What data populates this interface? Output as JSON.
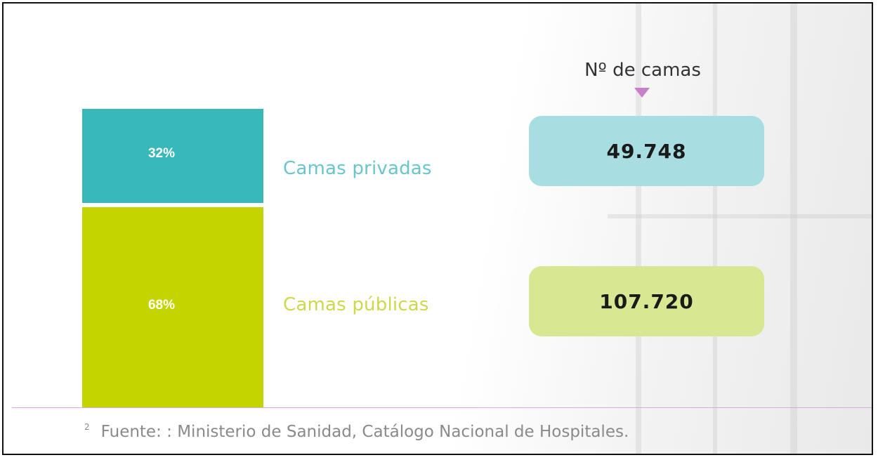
{
  "chart_data": {
    "type": "bar",
    "categories": [
      "Camas privadas",
      "Camas públicas"
    ],
    "percent_labels": [
      "32%",
      "68%"
    ],
    "share_percent": [
      32,
      68
    ],
    "values": [
      49748,
      107720
    ],
    "value_labels": [
      "49.748",
      "107.720"
    ],
    "value_header": "Nº de camas",
    "colors": [
      "#38b8b8",
      "#c3d400"
    ],
    "box_colors": [
      "#a8dde2",
      "#d8e791"
    ],
    "legend_colors": [
      "#69c6cc",
      "#cdd84a"
    ]
  },
  "footnote": {
    "marker": "2",
    "text": "Fuente: : Ministerio de Sanidad, Catálogo Nacional de Hospitales."
  }
}
